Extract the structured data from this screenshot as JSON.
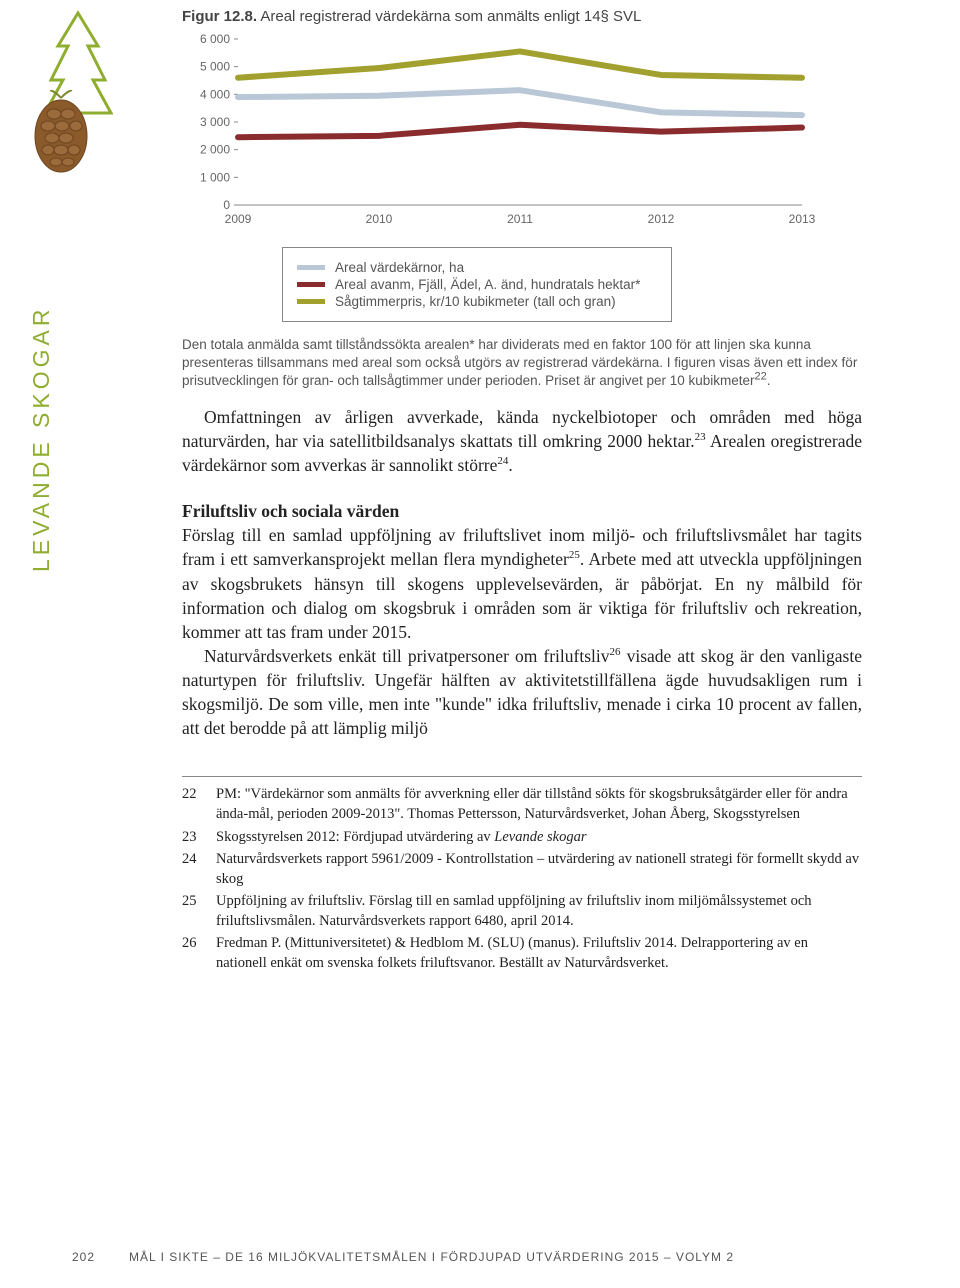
{
  "sidebar": {
    "label": "LEVANDE SKOGAR"
  },
  "figure": {
    "number": "Figur 12.8.",
    "caption": "Areal registrerad värdekärna som anmälts enligt 14§ SVL",
    "chart": {
      "type": "line",
      "x_labels": [
        "2009",
        "2010",
        "2011",
        "2012",
        "2013"
      ],
      "y_labels": [
        "0",
        "1 000",
        "2 000",
        "3 000",
        "4 000",
        "5 000",
        "6 000"
      ],
      "ylim": [
        0,
        6000
      ],
      "series": [
        {
          "name": "Areal värdekärnor, ha",
          "color": "#b9c7d6",
          "values": [
            3900,
            3950,
            4150,
            3350,
            3250
          ]
        },
        {
          "name": "Areal avanm, Fjäll, Ädel, A. änd, hundratals hektar*",
          "color": "#8a2c2e",
          "values": [
            2450,
            2500,
            2900,
            2650,
            2800
          ]
        },
        {
          "name": "Sågtimmerpris, kr/10 kubikmeter (tall och gran)",
          "color": "#a2a02e",
          "values": [
            4600,
            4950,
            5550,
            4700,
            4600
          ]
        }
      ],
      "axis_color": "#888888",
      "label_color": "#666666",
      "label_fontsize": 12,
      "line_width": 3
    },
    "legend": {
      "items": [
        {
          "color": "#b9c7d6",
          "label": "Areal värdekärnor, ha"
        },
        {
          "color": "#8a2c2e",
          "label": "Areal avanm, Fjäll, Ädel, A. änd, hundratals hektar*"
        },
        {
          "color": "#a2a02e",
          "label": "Sågtimmerpris, kr/10 kubikmeter (tall och gran)"
        }
      ]
    },
    "note": "Den totala anmälda samt tillståndssökta arealen* har dividerats med en faktor 100 för att linjen ska kunna presenteras tillsammans med areal som också utgörs av registrerad värdekärna. I figuren visas även ett index för prisutvecklingen för gran- och tallsågtimmer under perioden. Priset är angivet per 10 kubikmeter",
    "note_sup": "22",
    "note_tail": "."
  },
  "para1a": "Omfattningen av årligen avverkade, kända nyckelbiotoper och områden med höga naturvärden, har via satellitbildsanalys skattats till omkring 2000 hektar.",
  "para1_sup1": "23",
  "para1b": " Arealen oregistrerade värdekärnor som avverkas är sannolikt större",
  "para1_sup2": "24",
  "para1c": ".",
  "section2": {
    "heading": "Friluftsliv och sociala värden",
    "p1a": "Förslag till en samlad uppföljning av friluftslivet inom miljö- och friluftslivsmålet har tagits fram i ett samverkansprojekt mellan flera myndigheter",
    "p1_sup": "25",
    "p1b": ". Arbete med att utveckla uppföljningen av skogsbrukets hänsyn till skogens upplevelsevärden, är påbörjat. En ny målbild för information och dialog om skogsbruk i områden som är viktiga för friluftsliv och rekreation, kommer att tas fram under 2015.",
    "p2a": "Naturvårdsverkets enkät till privatpersoner om friluftsliv",
    "p2_sup": "26",
    "p2b": " visade att skog är den vanligaste naturtypen för friluftsliv. Ungefär hälften av aktivitetstillfällena ägde huvudsakligen rum i skogsmiljö. De som ville, men inte \"kunde\" idka friluftsliv, menade i cirka 10 procent av fallen, att det berodde på att lämplig miljö"
  },
  "footnotes": [
    {
      "n": "22",
      "t": "PM: \"Värdekärnor som anmälts för avverkning eller där tillstånd sökts för skogsbruksåtgärder eller för andra ända-mål, perioden 2009-2013\". Thomas Pettersson, Naturvårdsverket, Johan Åberg, Skogsstyrelsen"
    },
    {
      "n": "23",
      "t": "Skogsstyrelsen 2012: Fördjupad utvärdering av <span class=\"italic\">Levande skogar</span>"
    },
    {
      "n": "24",
      "t": "Naturvårdsverkets rapport 5961/2009 - Kontrollstation – utvärdering av nationell strategi för formellt skydd av skog"
    },
    {
      "n": "25",
      "t": "Uppföljning av friluftsliv. Förslag till en samlad uppföljning av friluftsliv inom miljömålssystemet och friluftslivsmålen. Naturvårdsverkets rapport 6480, april 2014."
    },
    {
      "n": "26",
      "t": "Fredman P. (Mittuniversitetet) &amp; Hedblom M. (SLU) (manus). Friluftsliv 2014. Delrapportering av en nationell enkät om svenska folkets friluftsvanor. Beställt av Naturvårdsverket."
    }
  ],
  "footer": {
    "page": "202",
    "text": "MÅL I SIKTE – DE 16 MILJÖKVALITETSMÅLEN I FÖRDJUPAD UTVÄRDERING 2015 – VOLYM 2"
  },
  "icons": {
    "tree_stroke": "#8fad2e",
    "cone_fill": "#8b5a2b",
    "cone_shadow": "#6e4520"
  }
}
